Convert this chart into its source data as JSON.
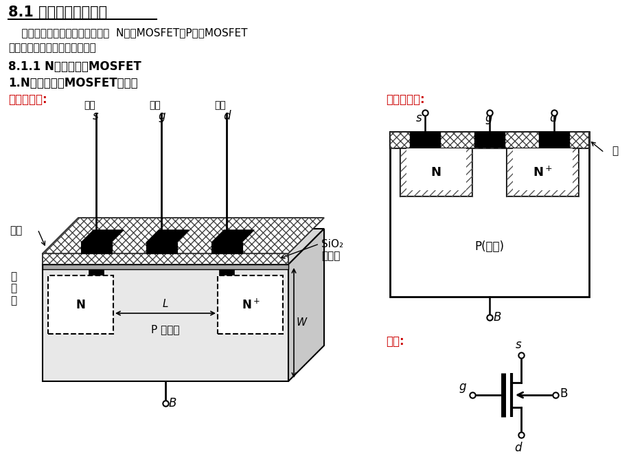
{
  "bg_color": "#ffffff",
  "text_color": "#000000",
  "red_color": "#cc0000",
  "title": "8.1 绝缘栅型场效应管",
  "intro1": "    按照导电沟道的形成机理不同，  N沟道MOSFET和P沟道MOSFET",
  "intro2": "又各有增强型和耗尽型两大类。",
  "sec811": "8.1.1 N沟道增强型MOSFET",
  "sec1": "1.N沟道增强型MOSFET的结构",
  "lbl_shiyitu": "结构示意图:",
  "lbl_poumiantu": "结构剖面图:",
  "lbl_fuhao": "符号:",
  "lbl_yuanji": "源极",
  "lbl_shanji": "栅极",
  "lbl_louji": "漏极",
  "lbl_lvceng": "铝层",
  "lbl_耗尽层": "耗\n尽\n层",
  "lbl_sio2": "SiO₂",
  "lbl_juyuanceng": "绝缘层",
  "lbl_pxing": "P 型衬底",
  "lbl_pdi": "P(衬底)",
  "lbl_lv": "铝"
}
